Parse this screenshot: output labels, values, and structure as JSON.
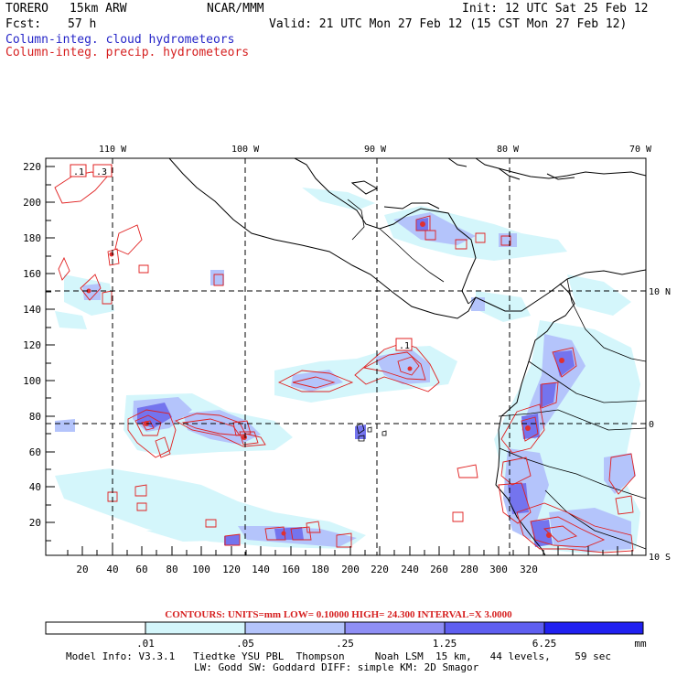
{
  "header": {
    "model": "TORERO",
    "resolution": "15km ARW",
    "org": "NCAR/MMM",
    "init": "Init: 12 UTC Sat 25 Feb 12",
    "fcst_label": "Fcst:",
    "fcst_value": "57 h",
    "valid": "Valid: 21 UTC Mon 27 Feb 12 (15 CST Mon 27 Feb 12)",
    "field1": "Column-integ. cloud hydrometeors",
    "field2": "Column-integ. precip. hydrometeors"
  },
  "map": {
    "lon_labels": [
      "110 W",
      "100 W",
      "90 W",
      "80 W",
      "70 W"
    ],
    "lat_labels": [
      "10 N",
      "0",
      "10 S"
    ],
    "x_ticks": [
      "20",
      "40",
      "60",
      "80",
      "100",
      "120",
      "140",
      "160",
      "180",
      "200",
      "220",
      "240",
      "260",
      "280",
      "300",
      "320"
    ],
    "y_ticks": [
      "20",
      "40",
      "60",
      "80",
      "100",
      "120",
      "140",
      "160",
      "180",
      "200",
      "220"
    ],
    "contour_labels": [
      ".1",
      ".3",
      ".1"
    ]
  },
  "contours_info": {
    "text": "CONTOURS:  UNITS=mm  LOW= 0.10000      HIGH=  24.300      INTERVAL=X  3.0000"
  },
  "colorbar": {
    "labels": [
      ".01",
      ".05",
      ".25",
      "1.25",
      "6.25"
    ],
    "units": "mm",
    "colors": [
      "#ffffff",
      "#d4f6fb",
      "#b4c4fb",
      "#8f8ff5",
      "#5f5ff0",
      "#2020f0"
    ]
  },
  "footer": {
    "line1": "Model Info: V3.3.1   Tiedtke YSU PBL  Thompson     Noah LSM  15 km,   44 levels,    59 sec",
    "line2": "LW: Godd SW: Goddard DIFF: simple KM: 2D Smagor"
  }
}
